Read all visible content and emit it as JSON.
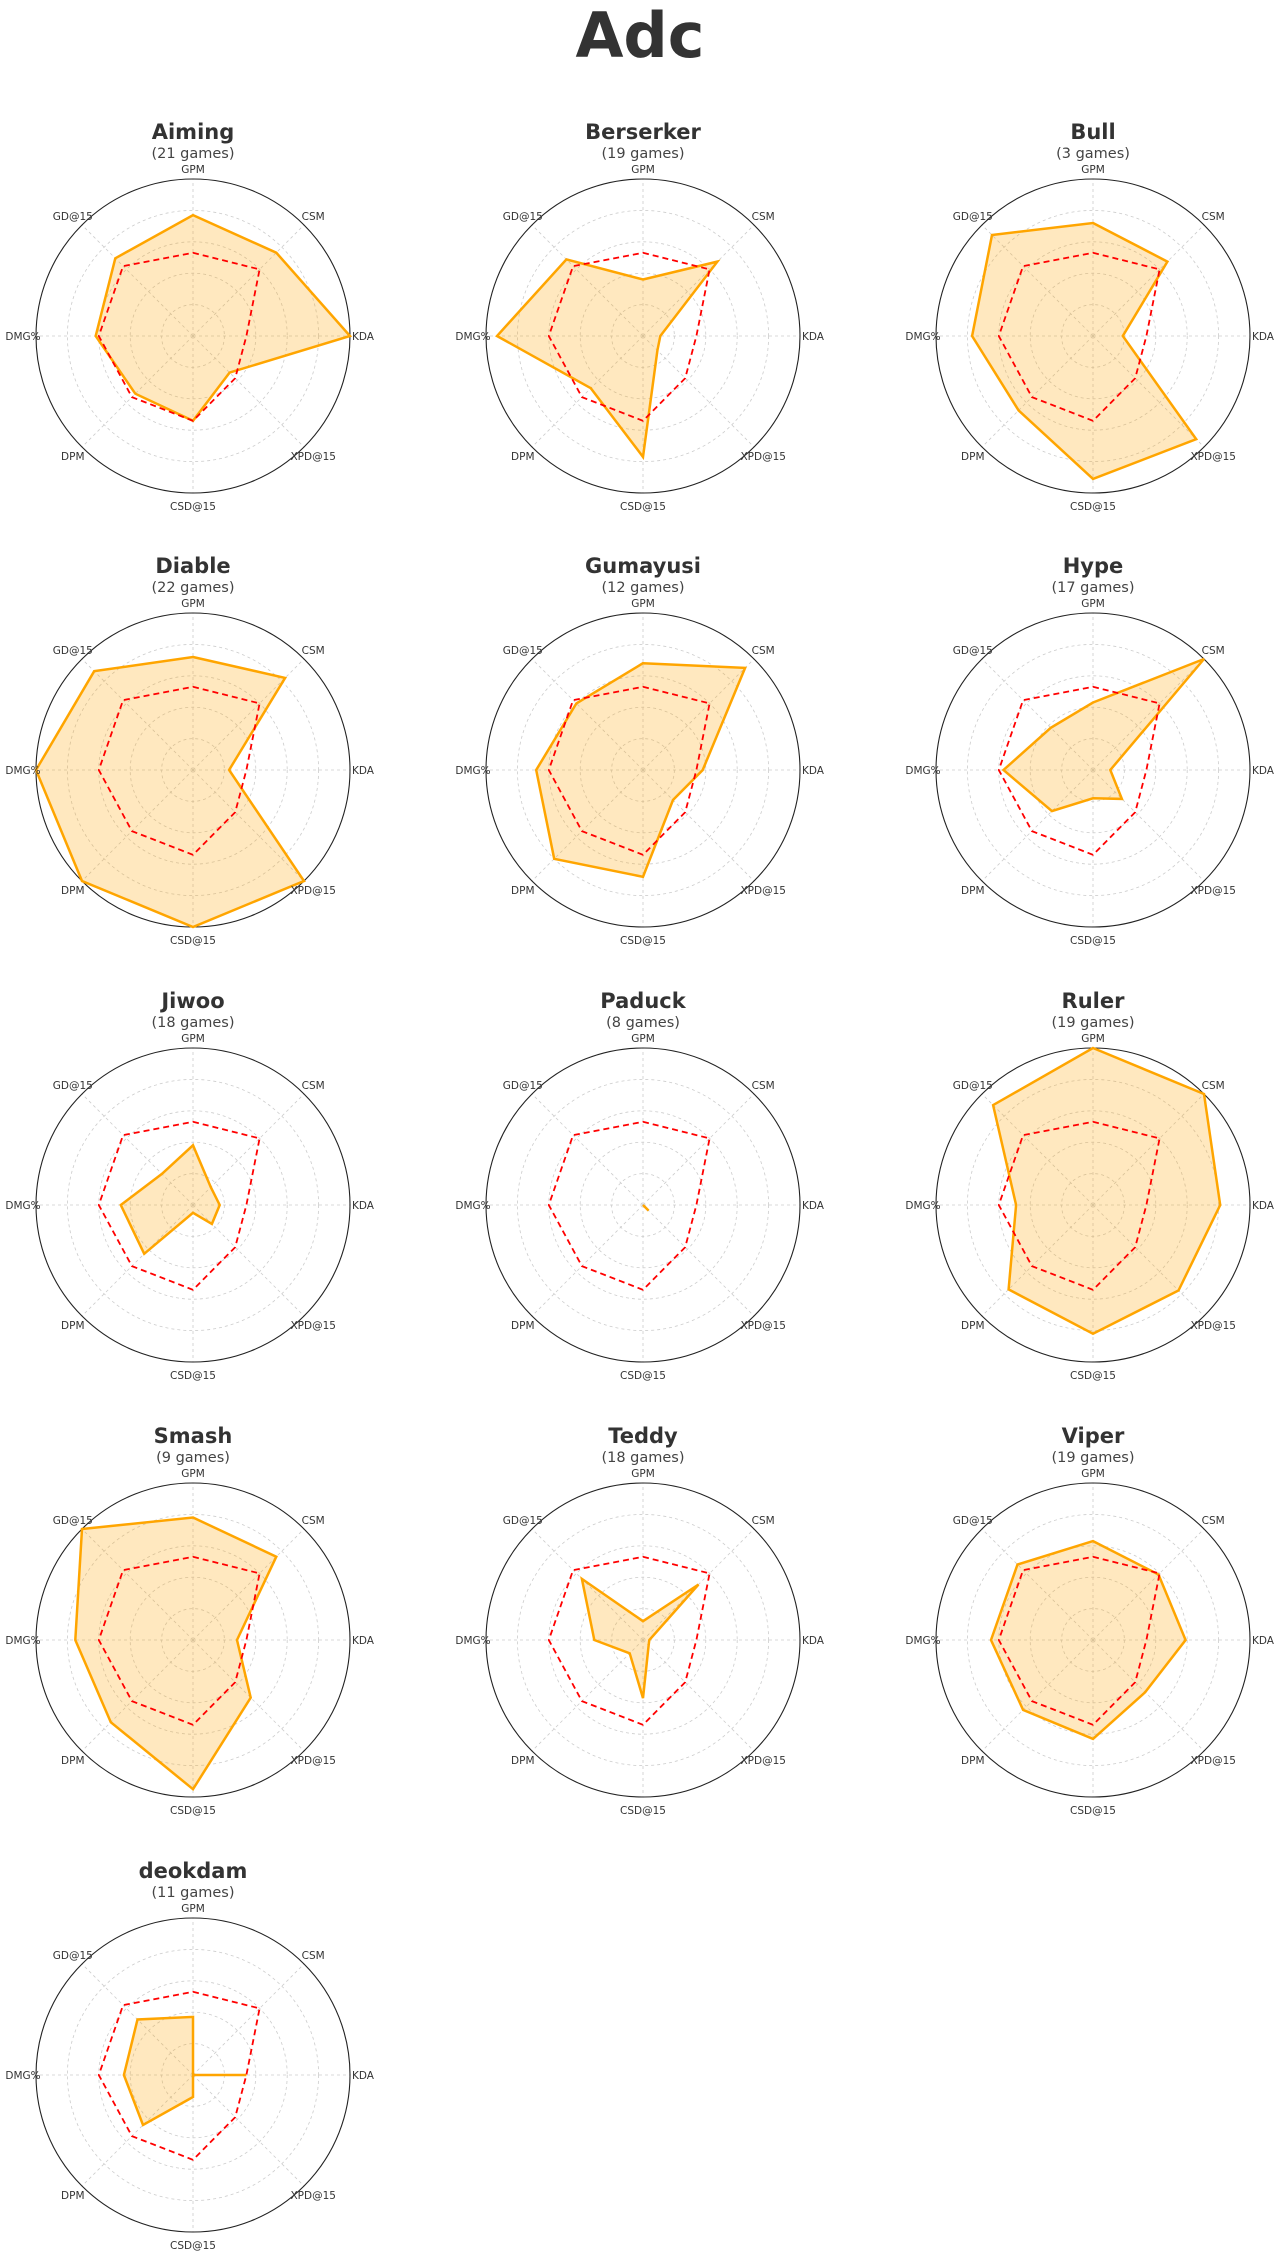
{
  "chart_data": {
    "type": "radar",
    "title": "Adc",
    "axes": [
      "GPM",
      "CSM",
      "KDA",
      "XPD@15",
      "CSD@15",
      "DPM",
      "DMG%",
      "GD@15"
    ],
    "range": [
      0,
      1
    ],
    "grid": true,
    "grid_levels": [
      0.2,
      0.4,
      0.6,
      0.8,
      1.0
    ],
    "colors": {
      "player": "#FFA500",
      "player_fill": "#FFA500",
      "average": "#FF0000"
    },
    "average": [
      0.53,
      0.6,
      0.34,
      0.38,
      0.54,
      0.55,
      0.6,
      0.63
    ],
    "players": [
      {
        "name": "Aiming",
        "subtitle": "(21 games)",
        "games": 21,
        "values": [
          0.77,
          0.75,
          1.0,
          0.33,
          0.54,
          0.52,
          0.62,
          0.7
        ]
      },
      {
        "name": "Berserker",
        "subtitle": "(19 games)",
        "games": 19,
        "values": [
          0.36,
          0.67,
          0.11,
          0.13,
          0.77,
          0.47,
          0.93,
          0.69
        ]
      },
      {
        "name": "Bull",
        "subtitle": "(3 games)",
        "games": 3,
        "values": [
          0.72,
          0.67,
          0.19,
          0.93,
          0.91,
          0.67,
          0.77,
          0.91
        ]
      },
      {
        "name": "Diable",
        "subtitle": "(22 games)",
        "games": 22,
        "values": [
          0.72,
          0.83,
          0.23,
          1.0,
          1.0,
          1.0,
          1.0,
          0.89
        ]
      },
      {
        "name": "Gumayusi",
        "subtitle": "(12 games)",
        "games": 12,
        "values": [
          0.68,
          0.92,
          0.38,
          0.27,
          0.68,
          0.8,
          0.68,
          0.6
        ]
      },
      {
        "name": "Hype",
        "subtitle": "(17 games)",
        "games": 17,
        "values": [
          0.43,
          1.0,
          0.11,
          0.26,
          0.18,
          0.37,
          0.57,
          0.38
        ]
      },
      {
        "name": "Jiwoo",
        "subtitle": "(18 games)",
        "games": 18,
        "values": [
          0.38,
          0.16,
          0.17,
          0.17,
          0.05,
          0.44,
          0.46,
          0.28
        ]
      },
      {
        "name": "Paduck",
        "subtitle": "(8 games)",
        "games": 8,
        "values": [
          0,
          0,
          0,
          0.05,
          0,
          0,
          0,
          0
        ]
      },
      {
        "name": "Ruler",
        "subtitle": "(19 games)",
        "games": 19,
        "values": [
          1.0,
          1.0,
          0.81,
          0.77,
          0.82,
          0.76,
          0.49,
          0.9
        ]
      },
      {
        "name": "Smash",
        "subtitle": "(9 games)",
        "games": 9,
        "values": [
          0.78,
          0.75,
          0.28,
          0.52,
          0.95,
          0.74,
          0.75,
          1.0
        ]
      },
      {
        "name": "Teddy",
        "subtitle": "(18 games)",
        "games": 18,
        "values": [
          0.12,
          0.5,
          0.04,
          0.05,
          0.37,
          0.12,
          0.31,
          0.55
        ]
      },
      {
        "name": "Viper",
        "subtitle": "(19 games)",
        "games": 19,
        "values": [
          0.63,
          0.59,
          0.59,
          0.47,
          0.63,
          0.63,
          0.65,
          0.68
        ]
      },
      {
        "name": "deokdam",
        "subtitle": "(11 games)",
        "games": 11,
        "values": [
          0.37,
          0,
          0.34,
          0,
          0.14,
          0.45,
          0.44,
          0.5
        ]
      }
    ]
  }
}
